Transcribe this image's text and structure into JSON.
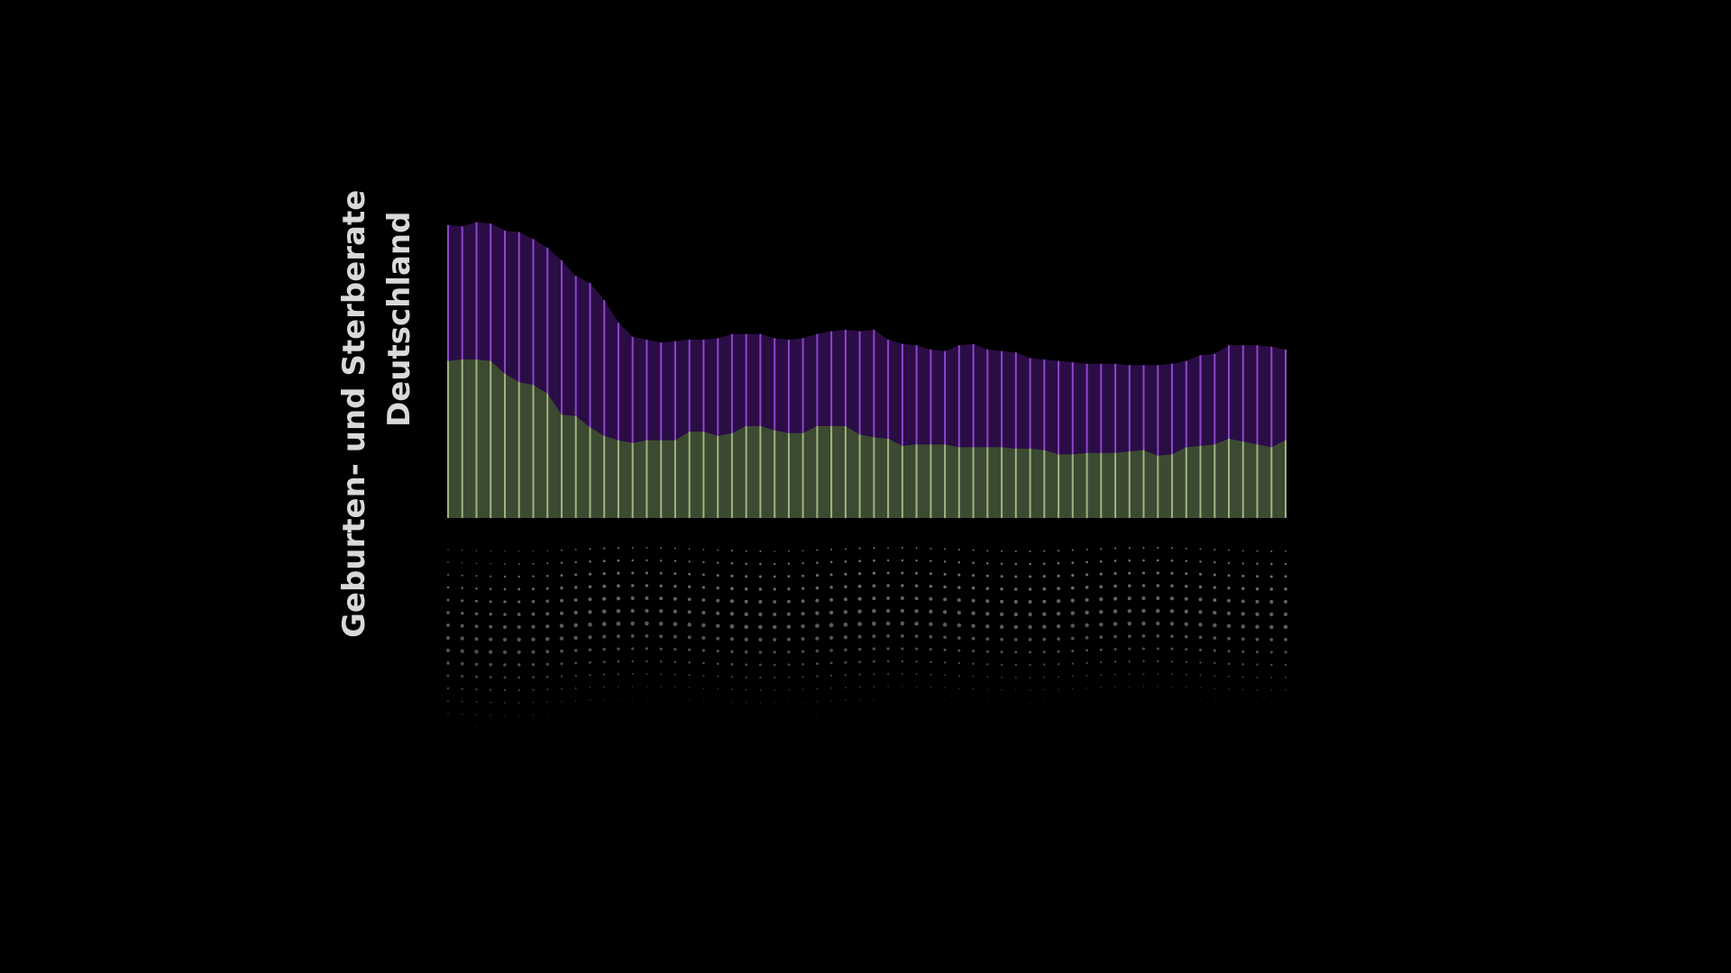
{
  "title_lines": [
    "Geburten- und Sterberate",
    "Deutschland"
  ],
  "colors": {
    "background": "#000000",
    "birth_fill": "#2a0d45",
    "birth_line": "#8d46c8",
    "death_fill": "#3b4a31",
    "death_line": "#9fb47f",
    "dot": "#8a9181",
    "title": "#d9d9d9"
  },
  "chart_data": {
    "type": "area",
    "title": "Geburten- und Sterberate Deutschland",
    "xlabel": "",
    "ylabel": "",
    "grid": false,
    "legend": "none",
    "ylim": [
      0,
      21
    ],
    "series": [
      {
        "name": "",
        "values": [
          20.7,
          20.6,
          20.9,
          20.8,
          20.3,
          20.2,
          19.7,
          19.1,
          18.2,
          17.1,
          16.6,
          15.4,
          13.8,
          12.8,
          12.6,
          12.4,
          12.5,
          12.6,
          12.6,
          12.7,
          13.0,
          13.0,
          13.0,
          12.7,
          12.6,
          12.7,
          13.0,
          13.2,
          13.3,
          13.2,
          13.3,
          12.6,
          12.3,
          12.2,
          11.9,
          11.8,
          12.2,
          12.3,
          11.9,
          11.8,
          11.7,
          11.3,
          11.2,
          11.1,
          11.0,
          10.9,
          10.9,
          10.9,
          10.8,
          10.8,
          10.8,
          10.9,
          11.1,
          11.5,
          11.6,
          12.2,
          12.2,
          12.2,
          12.1,
          11.9
        ]
      },
      {
        "name": "",
        "values": [
          11.1,
          11.2,
          11.2,
          11.1,
          10.2,
          9.6,
          9.4,
          8.8,
          7.3,
          7.2,
          6.4,
          5.8,
          5.5,
          5.3,
          5.5,
          5.5,
          5.5,
          6.1,
          6.1,
          5.8,
          6.0,
          6.5,
          6.5,
          6.2,
          6.0,
          6.0,
          6.5,
          6.5,
          6.5,
          5.9,
          5.7,
          5.6,
          5.1,
          5.2,
          5.2,
          5.2,
          5.0,
          5.0,
          5.0,
          5.0,
          4.9,
          4.9,
          4.8,
          4.5,
          4.5,
          4.6,
          4.6,
          4.6,
          4.7,
          4.8,
          4.4,
          4.5,
          5.0,
          5.1,
          5.2,
          5.6,
          5.4,
          5.2,
          5.0,
          5.5
        ]
      }
    ]
  }
}
